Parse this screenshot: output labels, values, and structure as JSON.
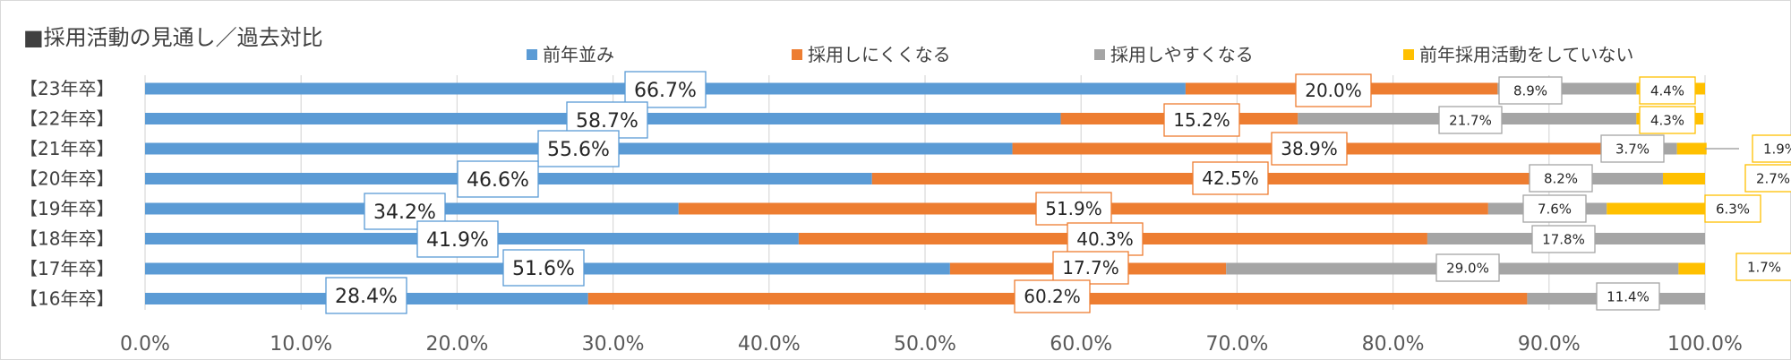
{
  "chart_data": {
    "type": "bar",
    "orientation": "horizontal",
    "stacked": "percent",
    "title": "■採用活動の見通し／過去対比",
    "categories": [
      "【23年卒】",
      "【22年卒】",
      "【21年卒】",
      "【20年卒】",
      "【19年卒】",
      "【18年卒】",
      "【17年卒】",
      "【16年卒】"
    ],
    "series": [
      {
        "name": "前年並み",
        "color": "#5B9BD5",
        "values": [
          66.7,
          58.7,
          55.6,
          46.6,
          34.2,
          41.9,
          51.6,
          28.4
        ],
        "labels": [
          "66.7%",
          "58.7%",
          "55.6%",
          "46.6%",
          "34.2%",
          "41.9%",
          "51.6%",
          "28.4%"
        ]
      },
      {
        "name": "採用しにくくなる",
        "color": "#ED7D31",
        "values": [
          20.0,
          15.2,
          38.9,
          42.5,
          51.9,
          40.3,
          17.7,
          60.2
        ],
        "labels": [
          "20.0%",
          "15.2%",
          "38.9%",
          "42.5%",
          "51.9%",
          "40.3%",
          "17.7%",
          "60.2%"
        ]
      },
      {
        "name": "採用しやすくなる",
        "color": "#A5A5A5",
        "values": [
          8.9,
          21.7,
          3.7,
          8.2,
          7.6,
          17.8,
          29.0,
          11.4
        ],
        "labels": [
          "8.9%",
          "21.7%",
          "3.7%",
          "8.2%",
          "7.6%",
          "17.8%",
          "29.0%",
          "11.4%"
        ]
      },
      {
        "name": "前年採用活動をしていない",
        "color": "#FFC000",
        "values": [
          4.4,
          4.3,
          1.9,
          2.7,
          6.3,
          0,
          1.7,
          0
        ],
        "labels": [
          "4.4%",
          "4.3%",
          "1.9%",
          "2.7%",
          "6.3%",
          "",
          "1.7%",
          ""
        ]
      }
    ],
    "x_ticks": [
      "0.0%",
      "10.0%",
      "20.0%",
      "30.0%",
      "40.0%",
      "50.0%",
      "60.0%",
      "70.0%",
      "80.0%",
      "90.0%",
      "100.0%"
    ],
    "xlim": [
      0,
      100
    ],
    "grid": true,
    "legend_position": "top"
  }
}
